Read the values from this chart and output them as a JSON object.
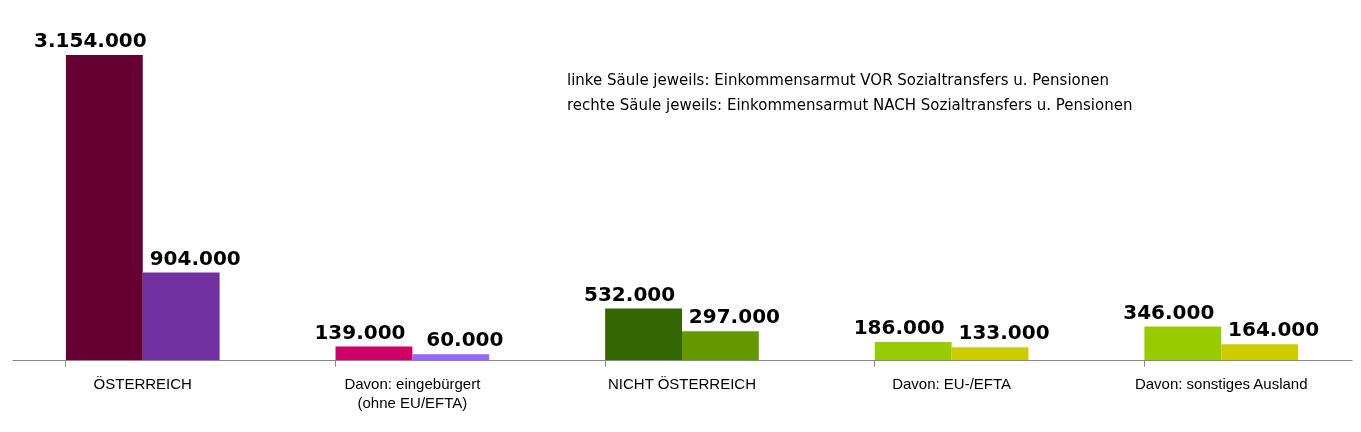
{
  "chart_data": {
    "type": "bar",
    "categories": [
      "ÖSTERREICH",
      "Davon: eingebürgert\n(ohne EU/EFTA)",
      "NICHT ÖSTERREICH",
      "Davon: EU-/EFTA",
      "Davon: sonstiges Ausland"
    ],
    "series": [
      {
        "colors": [
          "#660033",
          "#cc0066",
          "#336600",
          "#99cc00",
          "#99cc00"
        ],
        "values": [
          3154000,
          139000,
          532000,
          186000,
          346000
        ],
        "value_labels": [
          "3.154.000",
          "139.000",
          "532.000",
          "186.000",
          "346.000"
        ]
      },
      {
        "colors": [
          "#7030a0",
          "#9966ff",
          "#669900",
          "#cccc00",
          "#cccc00"
        ],
        "values": [
          904000,
          60000,
          297000,
          133000,
          164000
        ],
        "value_labels": [
          "904.000",
          "60.000",
          "297.000",
          "133.000",
          "164.000"
        ]
      }
    ],
    "annotations": [
      "linke Säule jeweils:   Einkommensarmut VOR Sozialtransfers u. Pensionen",
      "rechte Säule jeweils:   Einkommensarmut NACH Sozialtransfers u. Pensionen"
    ],
    "grid": false
  }
}
